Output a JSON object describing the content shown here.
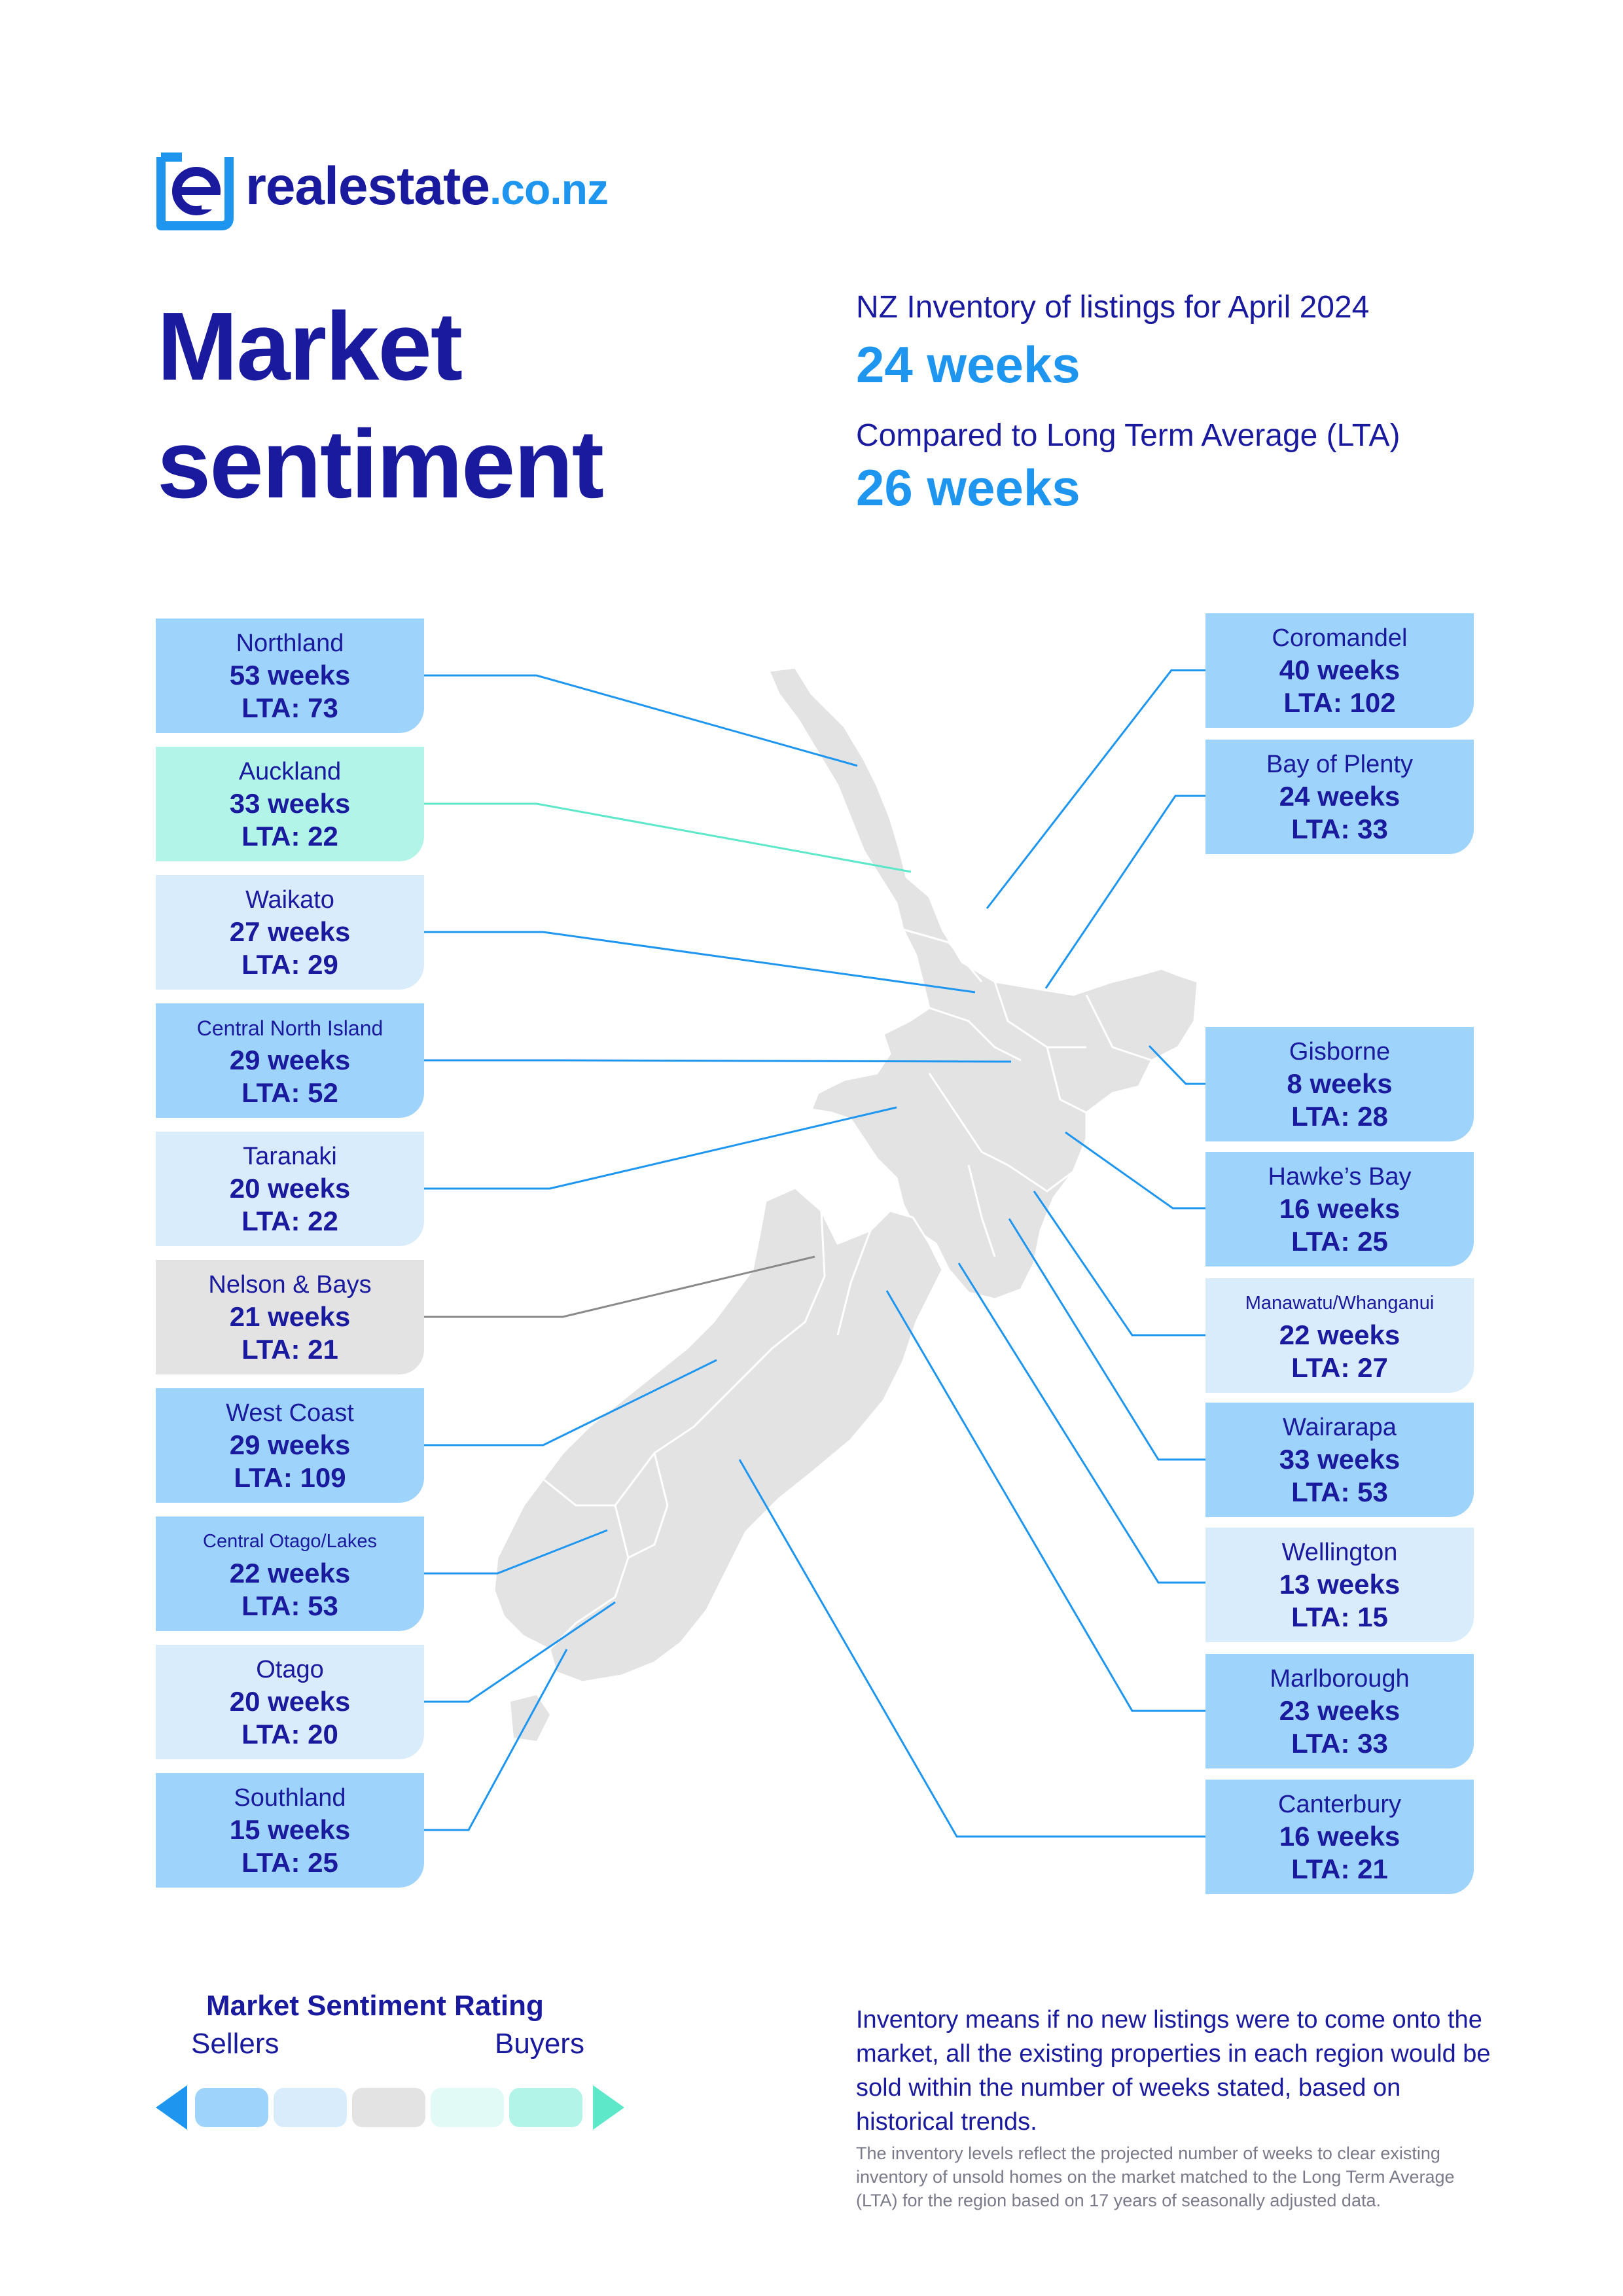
{
  "brand": {
    "name": "realestate",
    "tld": ".co.nz"
  },
  "title": {
    "line1": "Market",
    "line2": "sentiment"
  },
  "summary": {
    "inventory_label": "NZ Inventory of listings for April 2024",
    "inventory_value": "24 weeks",
    "lta_label": "Compared to Long Term Average (LTA)",
    "lta_value": "26 weeks"
  },
  "colors": {
    "sellers_strong": "#9ed3fb",
    "sellers": "#d8ecfc",
    "neutral": "#e3e3e3",
    "buyers": "#e2faf6",
    "buyers_strong": "#b2f5e8",
    "accent_blue": "#1e96f0",
    "navy": "#1a1a9e"
  },
  "regions_left": [
    {
      "name": "Northland",
      "weeks": "53 weeks",
      "lta": "LTA: 73",
      "rating": "sellers_strong"
    },
    {
      "name": "Auckland",
      "weeks": "33 weeks",
      "lta": "LTA: 22",
      "rating": "buyers_strong"
    },
    {
      "name": "Waikato",
      "weeks": "27 weeks",
      "lta": "LTA: 29",
      "rating": "sellers"
    },
    {
      "name": "Central North Island",
      "weeks": "29 weeks",
      "lta": "LTA: 52",
      "rating": "sellers_strong"
    },
    {
      "name": "Taranaki",
      "weeks": "20 weeks",
      "lta": "LTA: 22",
      "rating": "sellers"
    },
    {
      "name": "Nelson & Bays",
      "weeks": "21 weeks",
      "lta": "LTA: 21",
      "rating": "neutral"
    },
    {
      "name": "West Coast",
      "weeks": "29 weeks",
      "lta": "LTA: 109",
      "rating": "sellers_strong"
    },
    {
      "name": "Central Otago/Lakes",
      "weeks": "22 weeks",
      "lta": "LTA: 53",
      "rating": "sellers_strong"
    },
    {
      "name": "Otago",
      "weeks": "20 weeks",
      "lta": "LTA: 20",
      "rating": "sellers"
    },
    {
      "name": "Southland",
      "weeks": "15 weeks",
      "lta": "LTA: 25",
      "rating": "sellers_strong"
    }
  ],
  "regions_right": [
    {
      "name": "Coromandel",
      "weeks": "40 weeks",
      "lta": "LTA: 102",
      "rating": "sellers_strong"
    },
    {
      "name": "Bay of Plenty",
      "weeks": "24 weeks",
      "lta": "LTA: 33",
      "rating": "sellers_strong"
    },
    {
      "name": "Gisborne",
      "weeks": "8 weeks",
      "lta": "LTA: 28",
      "rating": "sellers_strong"
    },
    {
      "name": "Hawke’s Bay",
      "weeks": "16 weeks",
      "lta": "LTA: 25",
      "rating": "sellers_strong"
    },
    {
      "name": "Manawatu/Whanganui",
      "weeks": "22 weeks",
      "lta": "LTA: 27",
      "rating": "sellers"
    },
    {
      "name": "Wairarapa",
      "weeks": "33 weeks",
      "lta": "LTA: 53",
      "rating": "sellers_strong"
    },
    {
      "name": "Wellington",
      "weeks": "13 weeks",
      "lta": "LTA: 15",
      "rating": "sellers"
    },
    {
      "name": "Marlborough",
      "weeks": "23 weeks",
      "lta": "LTA: 33",
      "rating": "sellers_strong"
    },
    {
      "name": "Canterbury",
      "weeks": "16 weeks",
      "lta": "LTA: 21",
      "rating": "sellers_strong"
    }
  ],
  "legend": {
    "title": "Market Sentiment Rating",
    "sellers_label": "Sellers",
    "buyers_label": "Buyers"
  },
  "notes": {
    "main": "Inventory means if no new listings were to come onto the market, all the existing properties in each region would be sold within the number of weeks stated, based on historical trends.",
    "fine": "The inventory levels reflect the projected number of weeks to clear existing inventory of unsold homes on the market matched to the Long Term Average (LTA) for the region based on 17 years of seasonally adjusted data."
  }
}
